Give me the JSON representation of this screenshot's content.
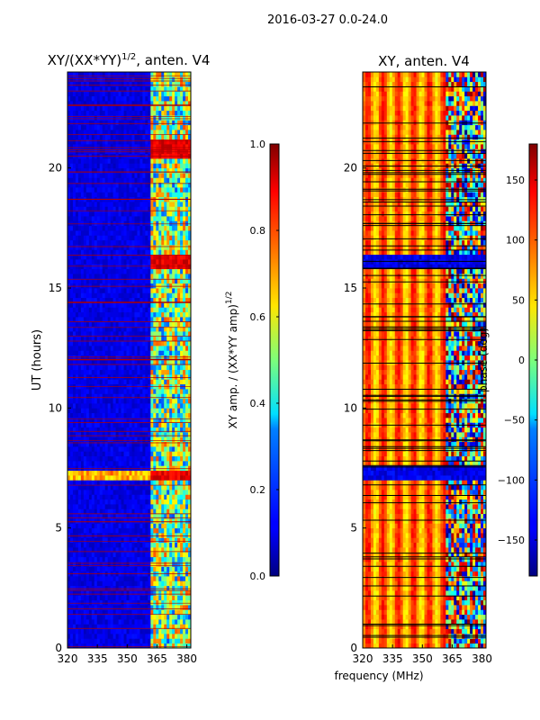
{
  "suptitle": "2016-03-27 0.0-24.0",
  "xlabel": "frequency (MHz)",
  "chart_data": [
    {
      "type": "heatmap",
      "title": "XY/(XX*YY)",
      "title_exp": "1/2",
      "title_suffix": ", anten. V4",
      "xlabel": "",
      "ylabel": "UT (hours)",
      "xlim": [
        320,
        382
      ],
      "ylim": [
        0,
        24
      ],
      "xticks": [
        320,
        335,
        350,
        365,
        380
      ],
      "yticks": [
        0,
        5,
        10,
        15,
        20
      ],
      "colorbar": {
        "label": "XY amp. / (XX*YY amp)",
        "label_exp": "1/2",
        "range": [
          0.0,
          1.0
        ],
        "ticks": [
          "0.0",
          "0.2",
          "0.4",
          "0.6",
          "0.8",
          "1.0"
        ],
        "tick_values": [
          0.0,
          0.2,
          0.4,
          0.6,
          0.8,
          1.0
        ]
      },
      "colormap": "jet",
      "description_values": {
        "background_level": 0.1,
        "rfi_band_mhz": [
          362,
          382
        ],
        "rfi_level": 0.5,
        "flare_hours": [
          [
            15.9,
            16.3
          ],
          [
            7.0,
            7.4
          ],
          [
            20.4,
            21.2
          ]
        ],
        "flare_level": 0.95
      }
    },
    {
      "type": "heatmap",
      "title": "XY, anten. V4",
      "xlabel": "",
      "ylabel": "",
      "xlim": [
        320,
        382
      ],
      "ylim": [
        0,
        24
      ],
      "xticks": [
        320,
        335,
        350,
        365,
        380
      ],
      "yticks": [
        0,
        5,
        10,
        15,
        20
      ],
      "colorbar": {
        "label": "phase (deg)",
        "range": [
          -180,
          180
        ],
        "ticks": [
          "−150",
          "−100",
          "−50",
          "0",
          "50",
          "100",
          "150"
        ],
        "tick_values": [
          -150,
          -100,
          -50,
          0,
          50,
          100,
          150
        ]
      },
      "colormap": "jet",
      "description_values": {
        "background_phase_deg": 90,
        "rfi_band_mhz": [
          362,
          382
        ],
        "flare_hours": [
          [
            15.9,
            16.3
          ],
          [
            7.0,
            7.6
          ]
        ]
      }
    }
  ]
}
